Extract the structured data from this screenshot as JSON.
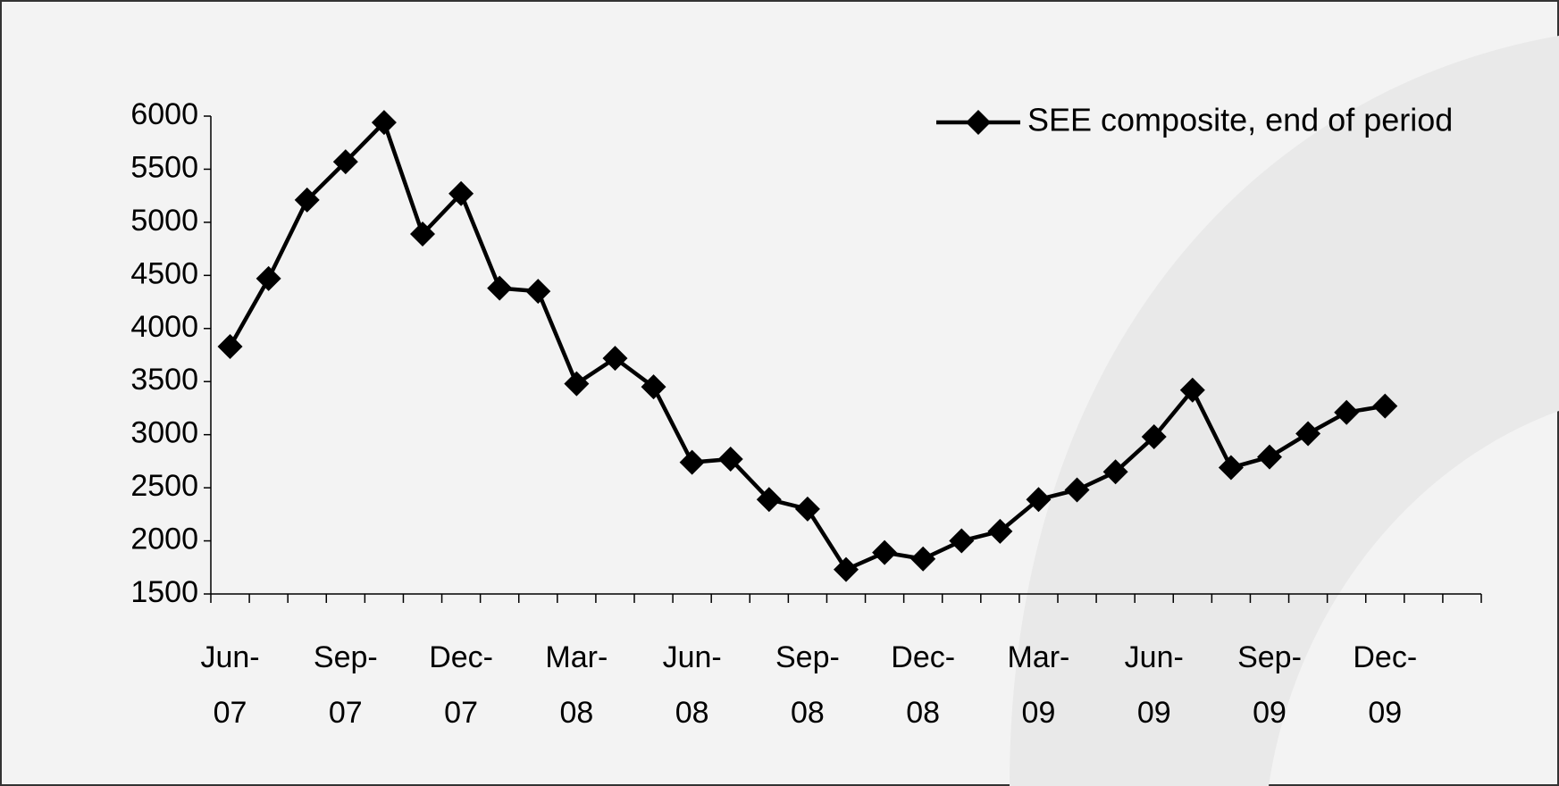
{
  "chart_data": {
    "type": "line",
    "categories": [
      "Jun-07",
      null,
      null,
      "Sep-07",
      null,
      null,
      "Dec-07",
      null,
      null,
      "Mar-08",
      null,
      null,
      "Jun-08",
      null,
      null,
      "Sep-08",
      null,
      null,
      "Dec-08",
      null,
      null,
      "Mar-09",
      null,
      null,
      "Jun-09",
      null,
      null,
      "Sep-09",
      null,
      null,
      "Dec-09",
      null,
      null
    ],
    "series": [
      {
        "name": "SEE composite, end of period",
        "color": "#000000",
        "values": [
          3830,
          4470,
          5210,
          5570,
          5940,
          4890,
          5270,
          4380,
          4350,
          3480,
          3720,
          3450,
          2740,
          2770,
          2390,
          2300,
          1730,
          1890,
          1830,
          2000,
          2090,
          2390,
          2480,
          2650,
          2980,
          3420,
          2690,
          2790,
          3010,
          3210,
          3270,
          null,
          null
        ]
      }
    ],
    "ylim": [
      1500,
      6000
    ],
    "yticks": [
      1500,
      2000,
      2500,
      3000,
      3500,
      4000,
      4500,
      5000,
      5500,
      6000
    ],
    "legend": "top-right"
  }
}
